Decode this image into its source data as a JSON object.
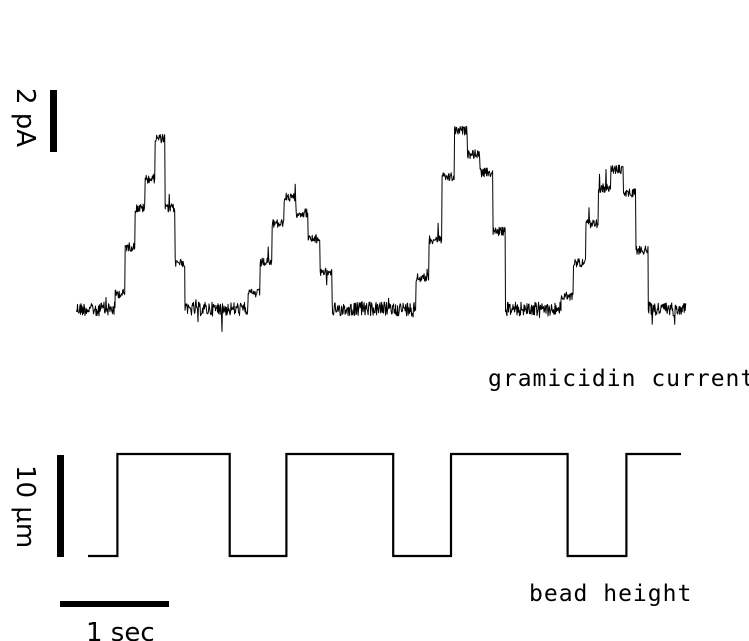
{
  "chart_data": [
    {
      "type": "line",
      "title": "",
      "series": [
        {
          "name": "gramicidin current",
          "unit": "pA",
          "baseline": 0,
          "segments": [
            {
              "t": [
                0.0,
                0.36
              ],
              "levels": [
                0
              ]
            },
            {
              "t": [
                0.36,
                1.0
              ],
              "levels": [
                0.5,
                2.0,
                3.25,
                4.2,
                5.5,
                3.25,
                1.5
              ]
            },
            {
              "t": [
                1.0,
                1.58
              ],
              "levels": [
                0
              ]
            },
            {
              "t": [
                1.58,
                2.35
              ],
              "levels": [
                0.5,
                1.5,
                2.75,
                3.6,
                3.1,
                2.25,
                1.2
              ]
            },
            {
              "t": [
                2.35,
                3.12
              ],
              "levels": [
                0
              ]
            },
            {
              "t": [
                3.12,
                3.94
              ],
              "levels": [
                1.0,
                2.25,
                4.25,
                5.75,
                5.0,
                4.4,
                2.5
              ]
            },
            {
              "t": [
                3.94,
                4.45
              ],
              "levels": [
                0
              ]
            },
            {
              "t": [
                4.45,
                5.25
              ],
              "levels": [
                0.4,
                1.5,
                2.75,
                3.9,
                4.5,
                3.75,
                1.9
              ]
            },
            {
              "t": [
                5.25,
                5.6
              ],
              "levels": [
                0
              ]
            }
          ]
        },
        {
          "name": "bead height",
          "unit": "µm",
          "low": 0,
          "high": 10,
          "transitions": [
            0.38,
            1.41,
            1.93,
            2.91,
            3.44,
            4.51,
            5.05
          ]
        }
      ],
      "labels": {
        "current_trace": "gramicidin current",
        "bead_trace": "bead height",
        "current_scale": "2 pA",
        "height_scale": "10 µm",
        "time_scale": "1 sec"
      },
      "scale_bars": {
        "current_pA": 2,
        "height_um": 10,
        "time_s": 1
      },
      "grid": false,
      "axes_visible": false
    }
  ]
}
